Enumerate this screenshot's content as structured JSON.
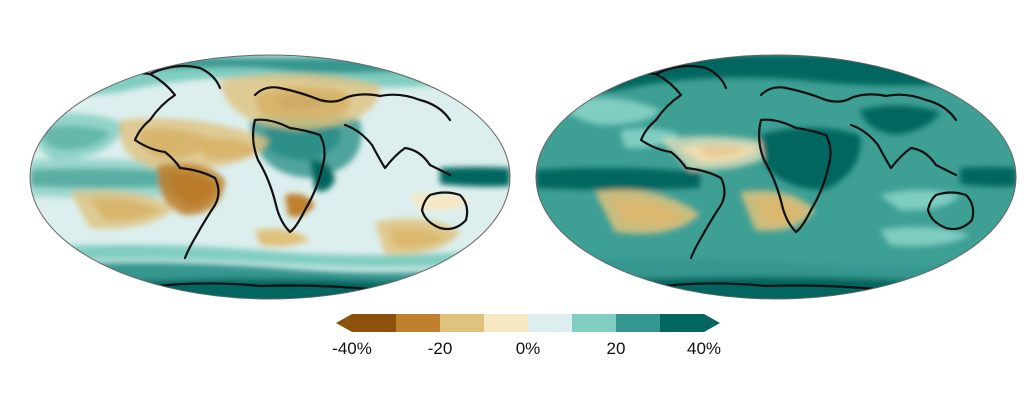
{
  "maps": [
    {
      "name": "left",
      "background_fill": "#dcefee",
      "features": [
        {
          "kind": "wet",
          "level": 3
        },
        {
          "kind": "dry",
          "level": 3
        }
      ]
    },
    {
      "name": "right",
      "background_fill": "#3e9f95"
    }
  ],
  "colorbar": {
    "colors": [
      "#8c510a",
      "#bf812d",
      "#dfc27d",
      "#f6e8c3",
      "#dcefee",
      "#80cdc1",
      "#35978f",
      "#01665e"
    ],
    "tick_labels": [
      "-40%",
      "-20",
      "0%",
      "20",
      "40%"
    ],
    "tick_values": [
      -40,
      -20,
      0,
      20,
      40
    ],
    "range": [
      -40,
      40
    ],
    "extend": "both"
  }
}
